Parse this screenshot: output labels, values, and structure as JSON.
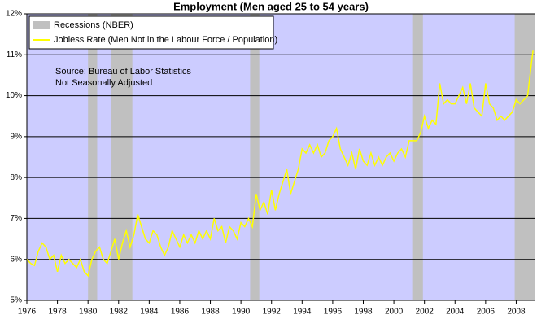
{
  "chart_data": {
    "type": "line",
    "title": "Employment (Men aged 25 to 54 years)",
    "annotations": [
      "Source: Bureau of Labor Statistics",
      "Not Seasonally Adjusted"
    ],
    "recession_name": "Recessions (NBER)",
    "recession_color": "#c0c0c0",
    "recessions": [
      [
        1980.0,
        1980.6
      ],
      [
        1981.5,
        1982.9
      ],
      [
        1990.6,
        1991.2
      ],
      [
        2001.2,
        2001.9
      ],
      [
        2007.9,
        2009.2
      ]
    ],
    "background": "#ccccff",
    "grid": true,
    "legend": "upper left",
    "xlim": [
      1976,
      2009.2
    ],
    "xticks": [
      1976,
      1978,
      1980,
      1982,
      1984,
      1986,
      1988,
      1990,
      1992,
      1994,
      1996,
      1998,
      2000,
      2002,
      2004,
      2006,
      2008
    ],
    "ylim": [
      5,
      12
    ],
    "yticks": [
      {
        "value": 5,
        "label": "5%"
      },
      {
        "value": 6,
        "label": "6%"
      },
      {
        "value": 7,
        "label": "7%"
      },
      {
        "value": 8,
        "label": "8%"
      },
      {
        "value": 9,
        "label": "9%"
      },
      {
        "value": 10,
        "label": "10%"
      },
      {
        "value": 11,
        "label": "11%"
      },
      {
        "value": 12,
        "label": "12%"
      }
    ],
    "x": [
      1976,
      1976.25,
      1976.5,
      1976.75,
      1977,
      1977.25,
      1977.5,
      1977.75,
      1978,
      1978.25,
      1978.5,
      1978.75,
      1979,
      1979.25,
      1979.5,
      1979.75,
      1980,
      1980.25,
      1980.5,
      1980.75,
      1981,
      1981.25,
      1981.5,
      1981.75,
      1982,
      1982.25,
      1982.5,
      1982.75,
      1983,
      1983.25,
      1983.5,
      1983.75,
      1984,
      1984.25,
      1984.5,
      1984.75,
      1985,
      1985.25,
      1985.5,
      1985.75,
      1986,
      1986.25,
      1986.5,
      1986.75,
      1987,
      1987.25,
      1987.5,
      1987.75,
      1988,
      1988.25,
      1988.5,
      1988.75,
      1989,
      1989.25,
      1989.5,
      1989.75,
      1990,
      1990.25,
      1990.5,
      1990.75,
      1991,
      1991.25,
      1991.5,
      1991.75,
      1992,
      1992.25,
      1992.5,
      1992.75,
      1993,
      1993.25,
      1993.5,
      1993.75,
      1994,
      1994.25,
      1994.5,
      1994.75,
      1995,
      1995.25,
      1995.5,
      1995.75,
      1996,
      1996.25,
      1996.5,
      1996.75,
      1997,
      1997.25,
      1997.5,
      1997.75,
      1998,
      1998.25,
      1998.5,
      1998.75,
      1999,
      1999.25,
      1999.5,
      1999.75,
      2000,
      2000.25,
      2000.5,
      2000.75,
      2001,
      2001.25,
      2001.5,
      2001.75,
      2002,
      2002.25,
      2002.5,
      2002.75,
      2003,
      2003.25,
      2003.5,
      2003.75,
      2004,
      2004.25,
      2004.5,
      2004.75,
      2005,
      2005.25,
      2005.5,
      2005.75,
      2006,
      2006.25,
      2006.5,
      2006.75,
      2007,
      2007.25,
      2007.5,
      2007.75,
      2008,
      2008.25,
      2008.5,
      2008.75,
      2009,
      2009.1
    ],
    "series": [
      {
        "name": "Jobless Rate (Men Not in the Labour Force / Population)",
        "color": "#ffff00",
        "values": [
          6.0,
          5.9,
          5.85,
          6.2,
          6.4,
          6.3,
          6.0,
          6.1,
          5.7,
          6.1,
          5.9,
          6.0,
          5.9,
          5.8,
          6.0,
          5.7,
          5.6,
          6.0,
          6.2,
          6.3,
          6.0,
          5.9,
          6.2,
          6.5,
          6.0,
          6.4,
          6.7,
          6.3,
          6.6,
          7.1,
          6.8,
          6.5,
          6.4,
          6.7,
          6.6,
          6.3,
          6.1,
          6.3,
          6.7,
          6.5,
          6.3,
          6.6,
          6.4,
          6.6,
          6.4,
          6.7,
          6.5,
          6.7,
          6.5,
          7.0,
          6.7,
          6.8,
          6.4,
          6.8,
          6.7,
          6.5,
          6.9,
          6.8,
          7.0,
          6.8,
          7.6,
          7.2,
          7.4,
          7.1,
          7.7,
          7.2,
          7.6,
          7.9,
          8.2,
          7.6,
          7.9,
          8.2,
          8.7,
          8.6,
          8.8,
          8.6,
          8.8,
          8.5,
          8.6,
          8.9,
          9.0,
          9.2,
          8.7,
          8.5,
          8.3,
          8.6,
          8.2,
          8.7,
          8.4,
          8.3,
          8.6,
          8.3,
          8.5,
          8.3,
          8.5,
          8.6,
          8.4,
          8.6,
          8.7,
          8.5,
          8.9,
          8.9,
          8.9,
          9.1,
          9.5,
          9.2,
          9.4,
          9.3,
          10.3,
          9.8,
          9.9,
          9.8,
          9.8,
          10.0,
          10.2,
          9.8,
          10.3,
          9.7,
          9.6,
          9.5,
          10.3,
          9.8,
          9.7,
          9.4,
          9.5,
          9.4,
          9.5,
          9.6,
          9.9,
          9.8,
          9.9,
          10.0,
          10.8,
          11.1
        ]
      }
    ]
  }
}
